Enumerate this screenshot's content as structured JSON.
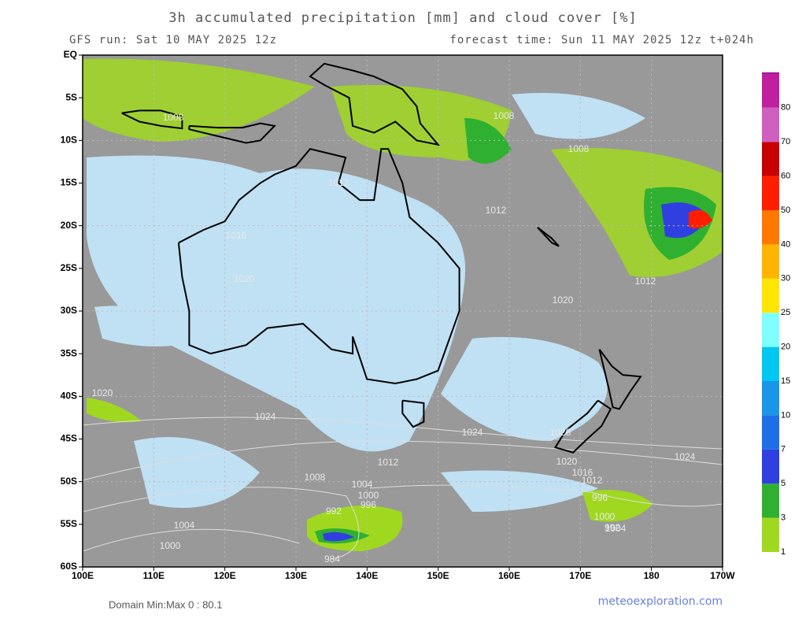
{
  "header": {
    "title": "3h accumulated precipitation [mm] and cloud cover [%]",
    "run": "GFS run: Sat 10 MAY 2025 12z",
    "forecast": "forecast time: Sun 11 MAY 2025 12z  t+024h"
  },
  "axes": {
    "lat_labels": [
      "EQ",
      "5S",
      "10S",
      "15S",
      "20S",
      "25S",
      "30S",
      "35S",
      "40S",
      "45S",
      "50S",
      "55S",
      "60S"
    ],
    "lon_labels": [
      "100E",
      "110E",
      "120E",
      "130E",
      "140E",
      "150E",
      "160E",
      "170E",
      "180",
      "170W"
    ]
  },
  "colorbar": {
    "labels": [
      1,
      3,
      5,
      7,
      10,
      15,
      20,
      25,
      30,
      40,
      50,
      60,
      70,
      80
    ],
    "colors": [
      "#a0d820",
      "#30b030",
      "#3040e0",
      "#1e6ee6",
      "#1a96e8",
      "#00c8f0",
      "#80ffff",
      "#ffe600",
      "#ffb400",
      "#ff7800",
      "#ff1e00",
      "#c80000",
      "#d060c0",
      "#c020a0",
      "#800090"
    ]
  },
  "isobar_labels": [
    "1008",
    "1008",
    "1008",
    "1012",
    "1012",
    "1012",
    "1016",
    "1020",
    "1020",
    "1020",
    "1024",
    "1024",
    "1024",
    "1028",
    "1020",
    "1016",
    "1012",
    "1012",
    "1008",
    "1004",
    "1000",
    "996",
    "992",
    "984",
    "1004",
    "1000",
    "996",
    "992",
    "1004",
    "1000"
  ],
  "footer": {
    "domain": "Domain Min:Max 0 : 80.1",
    "credit": "meteoexploration.com"
  }
}
